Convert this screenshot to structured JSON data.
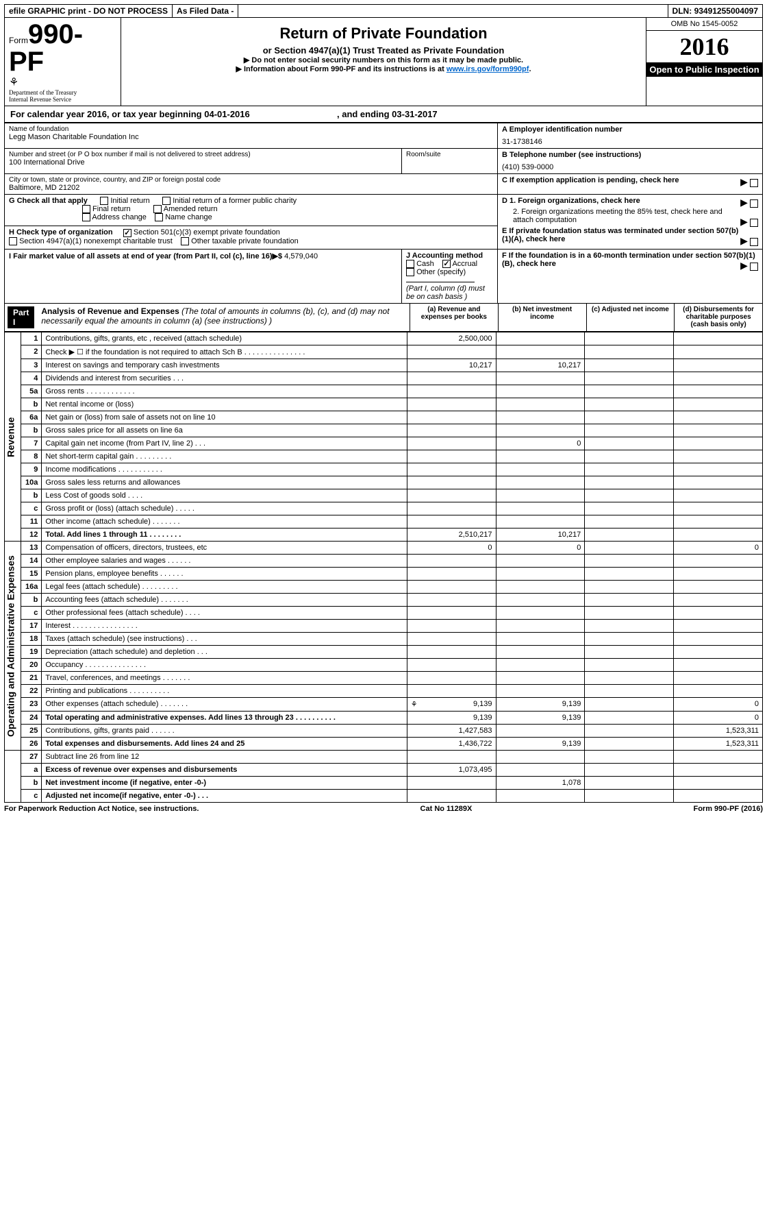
{
  "header_bar": {
    "efile_text": "efile GRAPHIC print - DO NOT PROCESS",
    "as_filed": "As Filed Data -",
    "dln_label": "DLN:",
    "dln_value": "93491255004097"
  },
  "form_block": {
    "form_word": "Form",
    "form_number": "990-PF",
    "dept1": "Department of the Treasury",
    "dept2": "Internal Revenue Service"
  },
  "title_block": {
    "main_title": "Return of Private Foundation",
    "subtitle": "or Section 4947(a)(1) Trust Treated as Private Foundation",
    "note1": "▶ Do not enter social security numbers on this form as it may be made public.",
    "note2_pre": "▶ Information about Form 990-PF and its instructions is at ",
    "note2_link": "www.irs.gov/form990pf",
    "note2_post": "."
  },
  "year_block": {
    "omb": "OMB No 1545-0052",
    "year": "2016",
    "open": "Open to Public Inspection"
  },
  "tax_year_row": {
    "label1": "For calendar year 2016, or tax year beginning ",
    "begin": "04-01-2016",
    "label2": ", and ending ",
    "end": "03-31-2017"
  },
  "entity": {
    "name_label": "Name of foundation",
    "name": "Legg Mason Charitable Foundation Inc",
    "addr_label": "Number and street (or P O  box number if mail is not delivered to street address)",
    "addr": "100 International Drive",
    "room_label": "Room/suite",
    "city_label": "City or town, state or province, country, and ZIP or foreign postal code",
    "city": "Baltimore, MD  21202",
    "ein_label": "A Employer identification number",
    "ein": "31-1738146",
    "phone_label": "B Telephone number (see instructions)",
    "phone": "(410) 539-0000",
    "c_label": "C If exemption application is pending, check here",
    "d1": "D 1. Foreign organizations, check here",
    "d2": "2. Foreign organizations meeting the 85% test, check here and attach computation",
    "e": "E  If private foundation status was terminated under section 507(b)(1)(A), check here",
    "f": "F  If the foundation is in a 60-month termination under section 507(b)(1)(B), check here"
  },
  "g_block": {
    "label": "G Check all that apply",
    "opts": [
      "Initial return",
      "Initial return of a former public charity",
      "Final return",
      "Amended return",
      "Address change",
      "Name change"
    ]
  },
  "h_block": {
    "label": "H Check type of organization",
    "opt1": "Section 501(c)(3) exempt private foundation",
    "opt2": "Section 4947(a)(1) nonexempt charitable trust",
    "opt3": "Other taxable private foundation"
  },
  "i_block": {
    "label": "I Fair market value of all assets at end of year (from Part II, col  (c), line 16)▶$ ",
    "value": "4,579,040"
  },
  "j_block": {
    "label": "J Accounting method",
    "cash": "Cash",
    "accrual": "Accrual",
    "other": "Other (specify)",
    "note": "(Part I, column (d) must be on cash basis )"
  },
  "part1": {
    "header": "Part I",
    "title": "Analysis of Revenue and Expenses",
    "subtitle": " (The total of amounts in columns (b), (c), and (d) may not necessarily equal the amounts in column (a) (see instructions) )",
    "col_a": "(a) Revenue and expenses per books",
    "col_b": "(b) Net investment income",
    "col_c": "(c) Adjusted net income",
    "col_d": "(d) Disbursements for charitable purposes (cash basis only)"
  },
  "section_labels": {
    "revenue": "Revenue",
    "expenses": "Operating and Administrative Expenses"
  },
  "rows": [
    {
      "n": "1",
      "desc": "Contributions, gifts, grants, etc , received (attach schedule)",
      "a": "2,500,000",
      "b": "",
      "c": "",
      "d": ""
    },
    {
      "n": "2",
      "desc": "Check ▶ ☐ if the foundation is not required to attach Sch B . . . . . . . . . . . . . . .",
      "a": "",
      "b": "",
      "c": "",
      "d": ""
    },
    {
      "n": "3",
      "desc": "Interest on savings and temporary cash investments",
      "a": "10,217",
      "b": "10,217",
      "c": "",
      "d": ""
    },
    {
      "n": "4",
      "desc": "Dividends and interest from securities  . . .",
      "a": "",
      "b": "",
      "c": "",
      "d": ""
    },
    {
      "n": "5a",
      "desc": "Gross rents  . . . . . . . . . . . .",
      "a": "",
      "b": "",
      "c": "",
      "d": ""
    },
    {
      "n": "b",
      "desc": "Net rental income or (loss)  ",
      "a": "",
      "b": "",
      "c": "",
      "d": ""
    },
    {
      "n": "6a",
      "desc": "Net gain or (loss) from sale of assets not on line 10",
      "a": "",
      "b": "",
      "c": "",
      "d": ""
    },
    {
      "n": "b",
      "desc": "Gross sales price for all assets on line 6a",
      "a": "",
      "b": "",
      "c": "",
      "d": ""
    },
    {
      "n": "7",
      "desc": "Capital gain net income (from Part IV, line 2) . . .",
      "a": "",
      "b": "0",
      "c": "",
      "d": ""
    },
    {
      "n": "8",
      "desc": "Net short-term capital gain . . . . . . . . .",
      "a": "",
      "b": "",
      "c": "",
      "d": ""
    },
    {
      "n": "9",
      "desc": "Income modifications . . . . . . . . . . .",
      "a": "",
      "b": "",
      "c": "",
      "d": ""
    },
    {
      "n": "10a",
      "desc": "Gross sales less returns and allowances",
      "a": "",
      "b": "",
      "c": "",
      "d": ""
    },
    {
      "n": "b",
      "desc": "Less  Cost of goods sold . . . .",
      "a": "",
      "b": "",
      "c": "",
      "d": ""
    },
    {
      "n": "c",
      "desc": "Gross profit or (loss) (attach schedule) . . . . .",
      "a": "",
      "b": "",
      "c": "",
      "d": ""
    },
    {
      "n": "11",
      "desc": "Other income (attach schedule) . . . . . . .",
      "a": "",
      "b": "",
      "c": "",
      "d": ""
    },
    {
      "n": "12",
      "desc": "Total. Add lines 1 through 11 . . . . . . . .",
      "a": "2,510,217",
      "b": "10,217",
      "c": "",
      "d": "",
      "bold": true
    }
  ],
  "exp_rows": [
    {
      "n": "13",
      "desc": "Compensation of officers, directors, trustees, etc",
      "a": "0",
      "b": "0",
      "c": "",
      "d": "0"
    },
    {
      "n": "14",
      "desc": "Other employee salaries and wages . . . . . .",
      "a": "",
      "b": "",
      "c": "",
      "d": ""
    },
    {
      "n": "15",
      "desc": "Pension plans, employee benefits . . . . . .",
      "a": "",
      "b": "",
      "c": "",
      "d": ""
    },
    {
      "n": "16a",
      "desc": "Legal fees (attach schedule) . . . . . . . . .",
      "a": "",
      "b": "",
      "c": "",
      "d": ""
    },
    {
      "n": "b",
      "desc": "Accounting fees (attach schedule) . . . . . . .",
      "a": "",
      "b": "",
      "c": "",
      "d": ""
    },
    {
      "n": "c",
      "desc": "Other professional fees (attach schedule) . . . .",
      "a": "",
      "b": "",
      "c": "",
      "d": ""
    },
    {
      "n": "17",
      "desc": "Interest . . . . . . . . . . . . . . . .",
      "a": "",
      "b": "",
      "c": "",
      "d": ""
    },
    {
      "n": "18",
      "desc": "Taxes (attach schedule) (see instructions)  . . .",
      "a": "",
      "b": "",
      "c": "",
      "d": ""
    },
    {
      "n": "19",
      "desc": "Depreciation (attach schedule) and depletion . . .",
      "a": "",
      "b": "",
      "c": "",
      "d": ""
    },
    {
      "n": "20",
      "desc": "Occupancy . . . . . . . . . . . . . . .",
      "a": "",
      "b": "",
      "c": "",
      "d": ""
    },
    {
      "n": "21",
      "desc": "Travel, conferences, and meetings . . . . . . .",
      "a": "",
      "b": "",
      "c": "",
      "d": ""
    },
    {
      "n": "22",
      "desc": "Printing and publications . . . . . . . . . .",
      "a": "",
      "b": "",
      "c": "",
      "d": ""
    },
    {
      "n": "23",
      "desc": "Other expenses (attach schedule) . . . . . . .",
      "a": "9,139",
      "b": "9,139",
      "c": "",
      "d": "0",
      "link": true
    },
    {
      "n": "24",
      "desc": "Total operating and administrative expenses. Add lines 13 through 23 . . . . . . . . . .",
      "a": "9,139",
      "b": "9,139",
      "c": "",
      "d": "0",
      "bold": true
    },
    {
      "n": "25",
      "desc": "Contributions, gifts, grants paid  . . . . . .",
      "a": "1,427,583",
      "b": "",
      "c": "",
      "d": "1,523,311"
    },
    {
      "n": "26",
      "desc": "Total expenses and disbursements. Add lines 24 and 25",
      "a": "1,436,722",
      "b": "9,139",
      "c": "",
      "d": "1,523,311",
      "bold": true
    }
  ],
  "bottom_rows": [
    {
      "n": "27",
      "desc": "Subtract line 26 from line 12",
      "a": "",
      "b": "",
      "c": "",
      "d": ""
    },
    {
      "n": "a",
      "desc": "Excess of revenue over expenses and disbursements",
      "a": "1,073,495",
      "b": "",
      "c": "",
      "d": "",
      "bold": true
    },
    {
      "n": "b",
      "desc": "Net investment income (if negative, enter -0-)",
      "a": "",
      "b": "1,078",
      "c": "",
      "d": "",
      "bold": true
    },
    {
      "n": "c",
      "desc": "Adjusted net income(if negative, enter -0-)  . . .",
      "a": "",
      "b": "",
      "c": "",
      "d": "",
      "bold": true
    }
  ],
  "footer": {
    "left": "For Paperwork Reduction Act Notice, see instructions.",
    "mid": "Cat No 11289X",
    "right": "Form 990-PF (2016)"
  }
}
